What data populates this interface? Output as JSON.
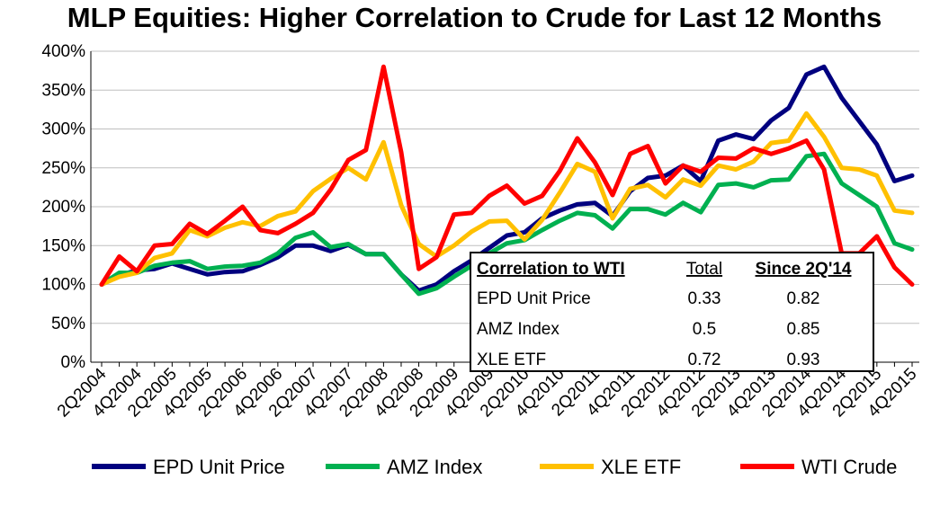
{
  "chart_data": {
    "type": "line",
    "title": "MLP Equities:  Higher Correlation to Crude for Last 12 Months",
    "ylim": [
      0,
      400
    ],
    "yticks": [
      "0%",
      "50%",
      "100%",
      "150%",
      "200%",
      "250%",
      "300%",
      "350%",
      "400%"
    ],
    "x": [
      "2Q2004",
      "3Q2004",
      "4Q2004",
      "1Q2005",
      "2Q2005",
      "3Q2005",
      "4Q2005",
      "1Q2006",
      "2Q2006",
      "3Q2006",
      "4Q2006",
      "1Q2007",
      "2Q2007",
      "3Q2007",
      "4Q2007",
      "1Q2008",
      "2Q2008",
      "3Q2008",
      "4Q2008",
      "1Q2009",
      "2Q2009",
      "3Q2009",
      "4Q2009",
      "1Q2010",
      "2Q2010",
      "3Q2010",
      "4Q2010",
      "1Q2011",
      "2Q2011",
      "3Q2011",
      "4Q2011",
      "1Q2012",
      "2Q2012",
      "3Q2012",
      "4Q2012",
      "1Q2013",
      "2Q2013",
      "3Q2013",
      "4Q2013",
      "1Q2014",
      "2Q2014",
      "3Q2014",
      "4Q2014",
      "1Q2015",
      "2Q2015",
      "3Q2015",
      "4Q2015"
    ],
    "xtick_labels": [
      "2Q2004",
      "4Q2004",
      "2Q2005",
      "4Q2005",
      "2Q2006",
      "4Q2006",
      "2Q2007",
      "4Q2007",
      "2Q2008",
      "4Q2008",
      "2Q2009",
      "4Q2009",
      "2Q2010",
      "4Q2010",
      "2Q2011",
      "4Q2011",
      "2Q2012",
      "4Q2012",
      "2Q2013",
      "4Q2013",
      "2Q2014",
      "4Q2014",
      "2Q2015",
      "4Q2015"
    ],
    "grid": true,
    "legend_position": "bottom",
    "series": [
      {
        "name": "EPD Unit Price",
        "color": "#00007f",
        "values": [
          100,
          112,
          118,
          120,
          127,
          120,
          113,
          116,
          117,
          125,
          135,
          150,
          150,
          143,
          151,
          139,
          139,
          113,
          92,
          100,
          117,
          131,
          147,
          163,
          167,
          185,
          195,
          203,
          205,
          188,
          220,
          237,
          240,
          253,
          233,
          285,
          293,
          287,
          311,
          327,
          370,
          380,
          340,
          310,
          280,
          233,
          240
        ]
      },
      {
        "name": "AMZ Index",
        "color": "#00b050",
        "values": [
          100,
          115,
          115,
          124,
          128,
          130,
          120,
          123,
          124,
          128,
          140,
          160,
          167,
          148,
          152,
          139,
          139,
          113,
          88,
          95,
          110,
          124,
          140,
          153,
          157,
          170,
          182,
          192,
          189,
          172,
          197,
          197,
          190,
          205,
          193,
          228,
          230,
          225,
          234,
          235,
          265,
          268,
          230,
          215,
          200,
          153,
          145
        ]
      },
      {
        "name": "XLE ETF",
        "color": "#ffc000",
        "values": [
          100,
          110,
          115,
          134,
          140,
          170,
          162,
          173,
          180,
          175,
          188,
          194,
          220,
          236,
          250,
          235,
          283,
          202,
          152,
          136,
          150,
          168,
          181,
          182,
          158,
          183,
          218,
          255,
          245,
          185,
          223,
          228,
          212,
          235,
          227,
          253,
          248,
          258,
          282,
          285,
          320,
          290,
          250,
          248,
          240,
          195,
          192
        ]
      },
      {
        "name": "WTI Crude",
        "color": "#ff0000",
        "values": [
          100,
          136,
          117,
          150,
          152,
          178,
          165,
          182,
          200,
          170,
          166,
          178,
          192,
          222,
          260,
          273,
          380,
          270,
          120,
          135,
          190,
          192,
          214,
          227,
          204,
          214,
          246,
          288,
          257,
          215,
          268,
          278,
          230,
          253,
          245,
          263,
          262,
          275,
          268,
          275,
          285,
          248,
          140,
          140,
          162,
          122,
          100
        ]
      }
    ],
    "table": {
      "headers": [
        "Correlation to WTI",
        "Total",
        "Since 2Q'14"
      ],
      "rows": [
        [
          "EPD Unit Price",
          "0.33",
          "0.82"
        ],
        [
          "AMZ Index",
          "0.5",
          "0.85"
        ],
        [
          "XLE ETF",
          "0.72",
          "0.93"
        ]
      ]
    }
  }
}
